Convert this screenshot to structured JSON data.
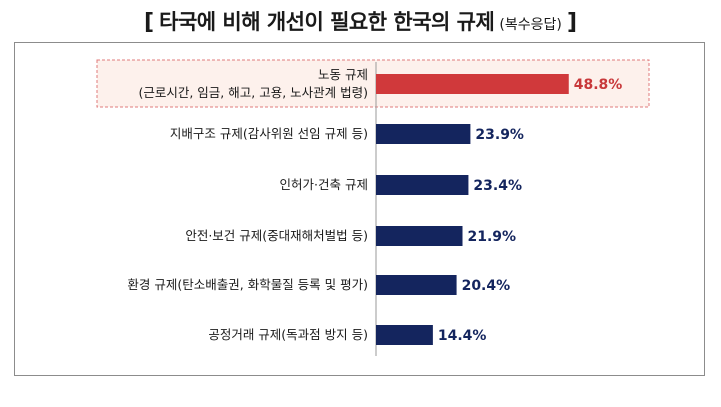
{
  "chart_data": {
    "type": "bar",
    "orientation": "horizontal",
    "title": "타국에 비해 개선이 필요한 한국의 규제",
    "subtitle": "(복수응답)",
    "title_bracket_open": "[",
    "title_bracket_close": "]",
    "unit": "%",
    "xlim": [
      0,
      60
    ],
    "grid": false,
    "categories": [
      [
        "노동 규제",
        "(근로시간, 임금, 해고, 고용, 노사관계 법령)"
      ],
      [
        "지배구조 규제(감사위원 선임 규제 등)"
      ],
      [
        "인허가·건축 규제"
      ],
      [
        "안전·보건 규제(중대재해처벌법 등)"
      ],
      [
        "환경 규제(탄소배출권, 화학물질 등록 및 평가)"
      ],
      [
        "공정거래 규제(독과점 방지 등)"
      ]
    ],
    "values": [
      48.8,
      23.9,
      23.4,
      21.9,
      20.4,
      14.4
    ],
    "value_labels": [
      "48.8%",
      "23.9%",
      "23.4%",
      "21.9%",
      "20.4%",
      "14.4%"
    ],
    "highlight_index": 0,
    "colors": {
      "highlight_bar": "#d0393b",
      "bar": "#14255e",
      "highlight_label": "#c8383a",
      "label": "#14255e",
      "highlight_box_border": "#e07b7b",
      "highlight_box_fill": "#fdf1ec"
    }
  }
}
